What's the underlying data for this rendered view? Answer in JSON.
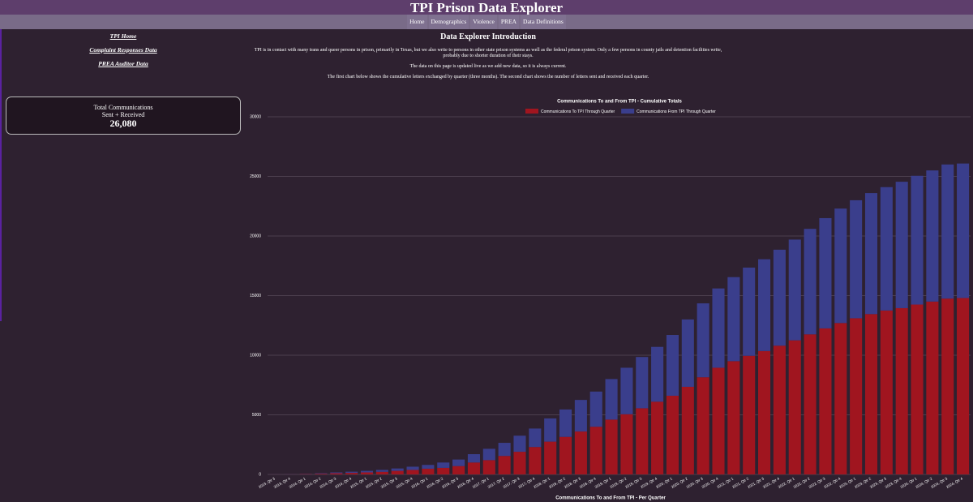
{
  "header": {
    "title": "TPI Prison Data Explorer"
  },
  "nav": [
    "Home",
    "Demographics",
    "Violence",
    "PREA",
    "Data Definitions"
  ],
  "sidebar": {
    "links": [
      "TPI Home",
      "Complaint Responses Data",
      "PREA Auditor Data"
    ],
    "stat": {
      "label": "Total Communications",
      "sublabel": "Sent + Received",
      "value": "26,080"
    }
  },
  "intro": {
    "heading": "Data Explorer Introduction",
    "paragraphs": [
      "TPI is in contact with many trans and queer persons in prison, primarily in Texas, but we also write to persons in other state prison systems as well as the federal prison system. Only a few persons in county jails and detention facilities write, probably due to shorter duration of their stays.",
      "The data on this page is updated live as we add new data, so it is always current.",
      "The first chart below shows the cumulative letters exchanged by quarter (three months). The second chart shows the number of letters sent and received each quarter."
    ]
  },
  "chart_data": {
    "type": "bar",
    "stacked": true,
    "title": "Communications To and From TPI - Cumulative Totals",
    "categories": [
      "2013, Qtr 3",
      "2013, Qtr 4",
      "2014, Qtr 1",
      "2014, Qtr 2",
      "2014, Qtr 3",
      "2014, Qtr 4",
      "2015, Qtr 1",
      "2015, Qtr 2",
      "2015, Qtr 3",
      "2015, Qtr 4",
      "2016, Qtr 1",
      "2016, Qtr 2",
      "2016, Qtr 3",
      "2016, Qtr 4",
      "2017, Qtr 1",
      "2017, Qtr 2",
      "2017, Qtr 3",
      "2017, Qtr 4",
      "2018, Qtr 1",
      "2018, Qtr 2",
      "2018, Qtr 3",
      "2018, Qtr 4",
      "2019, Qtr 1",
      "2019, Qtr 2",
      "2019, Qtr 3",
      "2019, Qtr 4",
      "2020, Qtr 1",
      "2020, Qtr 2",
      "2020, Qtr 3",
      "2020, Qtr 4",
      "2021, Qtr 1",
      "2021, Qtr 2",
      "2021, Qtr 3",
      "2021, Qtr 4",
      "2022, Qtr 1",
      "2022, Qtr 2",
      "2022, Qtr 3",
      "2022, Qtr 4",
      "2023, Qtr 1",
      "2023, Qtr 2",
      "2023, Qtr 3",
      "2023, Qtr 4",
      "2024, Qtr 1",
      "2024, Qtr 2",
      "2024, Qtr 3",
      "2024, Qtr 4"
    ],
    "series": [
      {
        "name": "Communications To TPI Through Quarter",
        "color": "#a0151f",
        "values": [
          5,
          10,
          30,
          60,
          100,
          130,
          170,
          220,
          300,
          380,
          480,
          550,
          700,
          1000,
          1200,
          1550,
          1900,
          2300,
          2750,
          3150,
          3600,
          4000,
          4600,
          5050,
          5550,
          6100,
          6600,
          7350,
          8150,
          8950,
          9500,
          9950,
          10350,
          10800,
          11250,
          11750,
          12250,
          12700,
          13100,
          13450,
          13750,
          13950,
          14250,
          14500,
          14750,
          14800
        ]
      },
      {
        "name": "Communications From TPI Through Quarter",
        "color": "#3a3e8c",
        "values": [
          5,
          10,
          20,
          40,
          70,
          100,
          130,
          160,
          200,
          270,
          320,
          450,
          550,
          700,
          950,
          1100,
          1350,
          1550,
          1950,
          2300,
          2650,
          2950,
          3400,
          3900,
          4300,
          4600,
          5100,
          5650,
          6200,
          6650,
          7050,
          7400,
          7700,
          8050,
          8450,
          8850,
          9250,
          9600,
          9900,
          10150,
          10350,
          10600,
          10800,
          11000,
          11250,
          11280
        ]
      }
    ],
    "ylim": [
      0,
      30000
    ],
    "yticks": [
      0,
      5000,
      10000,
      15000,
      20000,
      25000,
      30000
    ],
    "grid": true,
    "legend": "top"
  },
  "next_chart_title": "Communications To and From TPI - Per Quarter"
}
